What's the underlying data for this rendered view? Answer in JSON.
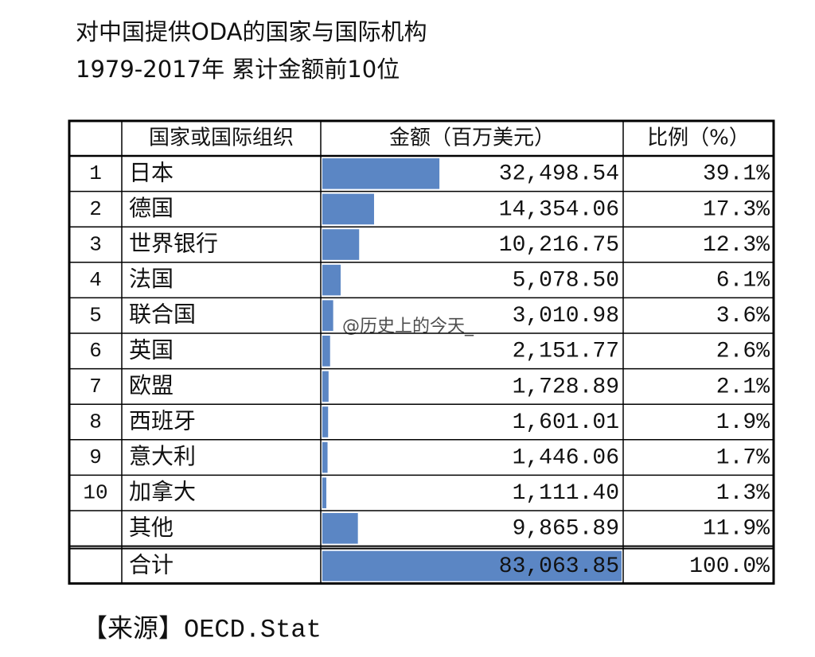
{
  "header": {
    "title": "对中国提供ODA的国家与国际机构",
    "subtitle": "1979-2017年 累计金额前10位"
  },
  "table": {
    "columns": [
      "国家或国际组织",
      "金额（百万美元）",
      "比例（%）"
    ],
    "rows": [
      {
        "rank": "1",
        "name": "日本",
        "amount": "32,498.54",
        "share": "39.1%"
      },
      {
        "rank": "2",
        "name": "德国",
        "amount": "14,354.06",
        "share": "17.3%"
      },
      {
        "rank": "3",
        "name": "世界银行",
        "amount": "10,216.75",
        "share": "12.3%"
      },
      {
        "rank": "4",
        "name": "法国",
        "amount": "5,078.50",
        "share": "6.1%"
      },
      {
        "rank": "5",
        "name": "联合国",
        "amount": "3,010.98",
        "share": "3.6%"
      },
      {
        "rank": "6",
        "name": "英国",
        "amount": "2,151.77",
        "share": "2.6%"
      },
      {
        "rank": "7",
        "name": "欧盟",
        "amount": "1,728.89",
        "share": "2.1%"
      },
      {
        "rank": "8",
        "name": "西班牙",
        "amount": "1,601.01",
        "share": "1.9%"
      },
      {
        "rank": "9",
        "name": "意大利",
        "amount": "1,446.06",
        "share": "1.7%"
      },
      {
        "rank": "10",
        "name": "加拿大",
        "amount": "1,111.40",
        "share": "1.3%"
      },
      {
        "name": "其他",
        "amount": "9,865.89",
        "share": "11.9%"
      }
    ],
    "total": {
      "name": "合计",
      "amount": "83,063.85",
      "share": "100.0%"
    }
  },
  "source": "【来源】OECD.Stat",
  "watermark": "@历史上的今天_"
}
